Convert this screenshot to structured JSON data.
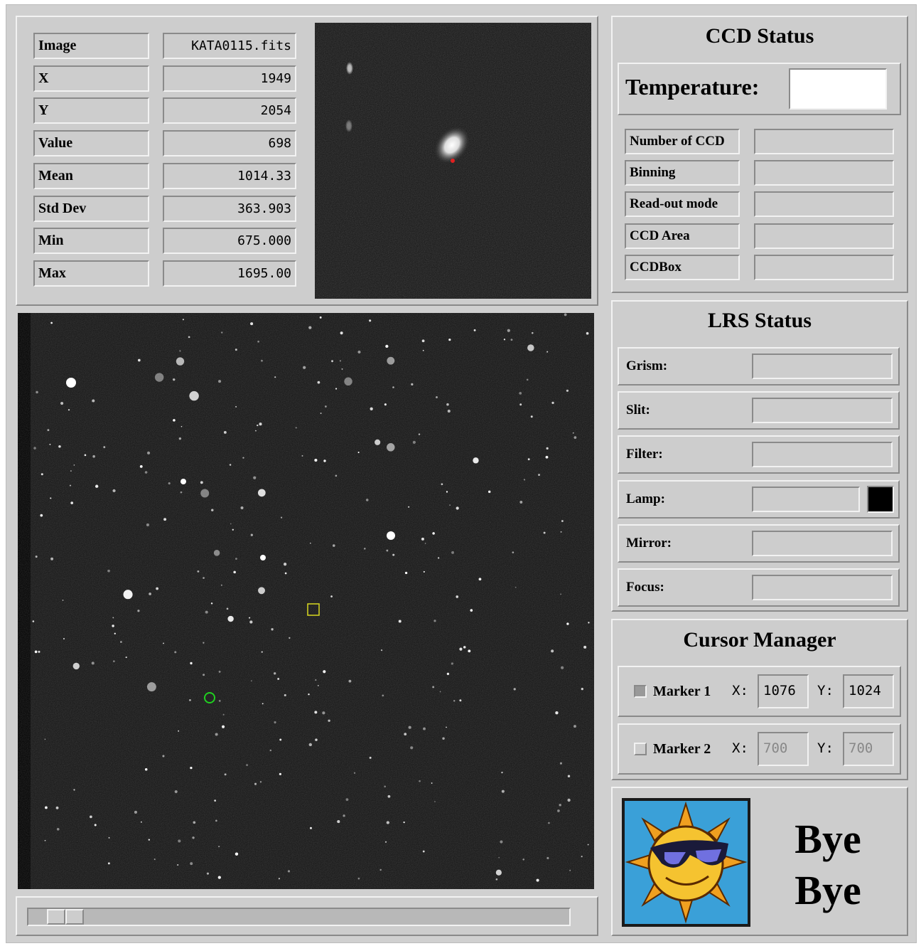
{
  "image_info": {
    "rows": [
      {
        "label": "Image",
        "value": "KATA0115.fits"
      },
      {
        "label": "X",
        "value": "1949"
      },
      {
        "label": "Y",
        "value": "2054"
      },
      {
        "label": "Value",
        "value": "698"
      },
      {
        "label": "Mean",
        "value": "1014.33"
      },
      {
        "label": "Std Dev",
        "value": "363.903"
      },
      {
        "label": "Min",
        "value": "675.000"
      },
      {
        "label": "Max",
        "value": "1695.00"
      }
    ]
  },
  "ccd_status": {
    "title": "CCD Status",
    "temperature_label": "Temperature:",
    "fields": [
      "Number of CCD",
      "Binning",
      "Read-out mode",
      "CCD Area",
      "CCDBox"
    ]
  },
  "lrs_status": {
    "title": "LRS Status",
    "fields": [
      "Grism:",
      "Slit:",
      "Filter:",
      "Lamp:",
      "Mirror:",
      "Focus:"
    ]
  },
  "cursor_manager": {
    "title": "Cursor Manager",
    "markers": [
      {
        "label": "Marker 1",
        "x_label": "X:",
        "x": "1076",
        "y_label": "Y:",
        "y": "1024"
      },
      {
        "label": "Marker 2",
        "x_label": "X:",
        "x": "700",
        "y_label": "Y:",
        "y": "700"
      }
    ]
  },
  "bye": {
    "line1": "Bye",
    "line2": "Bye"
  }
}
